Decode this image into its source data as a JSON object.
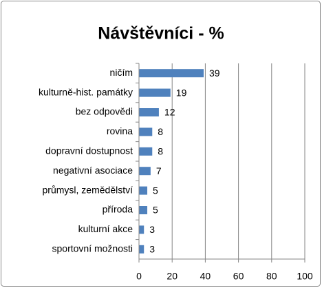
{
  "chart_data": {
    "type": "bar",
    "orientation": "horizontal",
    "title": "Návštěvníci - %",
    "categories": [
      "ničím",
      "kulturně-hist. památky",
      "bez odpovědi",
      "rovina",
      "dopravní dostupnost",
      "negativní asociace",
      "průmysl, zemědělství",
      "příroda",
      "kulturní akce",
      "sportovní možnosti"
    ],
    "values": [
      39,
      19,
      12,
      8,
      8,
      7,
      5,
      5,
      3,
      3
    ],
    "color": "#4f81bd",
    "xlim": [
      0,
      100
    ],
    "xticks": [
      0,
      20,
      40,
      60,
      80,
      100
    ],
    "grid": true
  }
}
